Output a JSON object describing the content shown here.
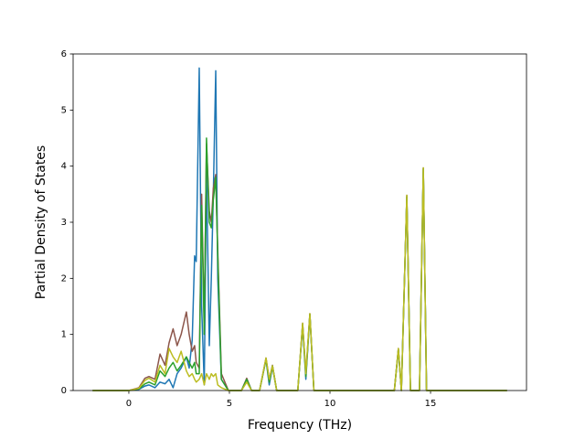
{
  "chart_data": {
    "type": "line",
    "x_label": "Frequency (THz)",
    "y_label": "Partial Density of States",
    "x": [
      -1.8,
      0.0,
      0.5,
      0.8,
      1.0,
      1.3,
      1.55,
      1.8,
      2.0,
      2.2,
      2.4,
      2.6,
      2.86,
      3.0,
      3.15,
      3.27,
      3.35,
      3.5,
      3.62,
      3.75,
      3.86,
      4.0,
      4.1,
      4.2,
      4.32,
      4.42,
      4.6,
      4.95,
      5.6,
      5.86,
      6.1,
      6.5,
      6.82,
      6.98,
      7.14,
      7.35,
      8.4,
      8.64,
      8.8,
      9.0,
      9.2,
      13.2,
      13.4,
      13.55,
      13.82,
      14.0,
      14.45,
      14.64,
      14.8,
      18.8
    ],
    "series": [
      {
        "color": "#1f77b4",
        "values": [
          0,
          0,
          0.02,
          0.08,
          0.1,
          0.05,
          0.15,
          0.12,
          0.2,
          0.05,
          0.3,
          0.4,
          0.6,
          0.4,
          0.9,
          2.4,
          2.3,
          5.75,
          1.5,
          0.1,
          3.9,
          0.8,
          2.0,
          3.5,
          5.7,
          2.0,
          0.2,
          0,
          0,
          0.2,
          0,
          0,
          0.55,
          0.1,
          0.42,
          0,
          0,
          1.15,
          0.2,
          1.35,
          0,
          0,
          0.72,
          0,
          3.45,
          0,
          0,
          3.95,
          0,
          0
        ]
      },
      {
        "color": "#8c564b",
        "values": [
          0,
          0,
          0.05,
          0.22,
          0.25,
          0.2,
          0.65,
          0.45,
          0.85,
          1.1,
          0.8,
          1.0,
          1.4,
          1.0,
          0.7,
          0.8,
          0.5,
          0.4,
          3.5,
          1.2,
          4.4,
          3.2,
          3.0,
          3.6,
          3.85,
          2.5,
          0.3,
          0,
          0,
          0.22,
          0,
          0,
          0.58,
          0.2,
          0.45,
          0,
          0,
          1.2,
          0.3,
          1.37,
          0,
          0,
          0.75,
          0,
          3.48,
          0,
          0,
          3.97,
          0,
          0
        ]
      },
      {
        "color": "#2ca02c",
        "values": [
          0,
          0,
          0.03,
          0.12,
          0.15,
          0.1,
          0.35,
          0.25,
          0.4,
          0.5,
          0.35,
          0.45,
          0.6,
          0.5,
          0.4,
          0.5,
          0.3,
          0.3,
          3.3,
          1.0,
          4.5,
          3.0,
          2.9,
          3.4,
          3.8,
          2.4,
          0.2,
          0,
          0,
          0.2,
          0,
          0,
          0.56,
          0.15,
          0.44,
          0,
          0,
          1.18,
          0.25,
          1.36,
          0,
          0,
          0.74,
          0,
          3.46,
          0,
          0,
          3.96,
          0,
          0
        ]
      },
      {
        "color": "#bcbd22",
        "values": [
          0,
          0,
          0.04,
          0.18,
          0.22,
          0.15,
          0.45,
          0.3,
          0.75,
          0.6,
          0.5,
          0.7,
          0.35,
          0.25,
          0.3,
          0.2,
          0.15,
          0.2,
          0.3,
          0.1,
          0.3,
          0.2,
          0.3,
          0.25,
          0.3,
          0.1,
          0.05,
          0,
          0,
          0.15,
          0,
          0,
          0.58,
          0.2,
          0.44,
          0,
          0,
          1.2,
          0.3,
          1.37,
          0,
          0,
          0.75,
          0,
          3.48,
          0,
          0,
          3.97,
          0,
          0
        ]
      }
    ],
    "xlim": [
      -2.77,
      19.77
    ],
    "xticks": [
      0,
      5,
      10,
      15
    ],
    "ylim": [
      0,
      6
    ],
    "yticks": [
      0,
      1,
      2,
      3,
      4,
      5,
      6
    ],
    "grid": false
  }
}
